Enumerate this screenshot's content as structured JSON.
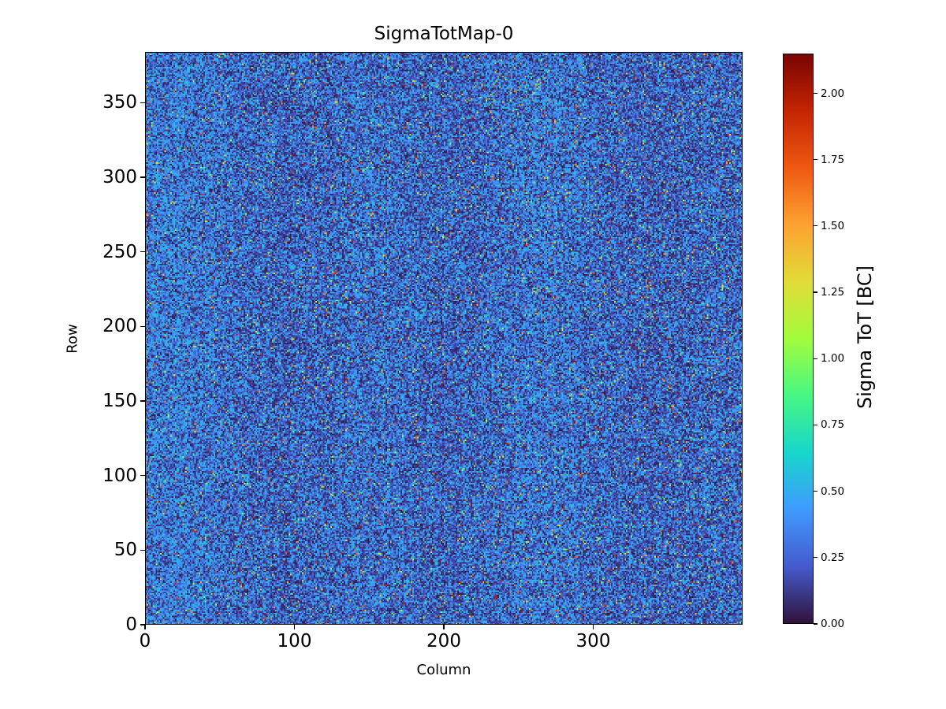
{
  "title": "SigmaTotMap-0",
  "xlabel": "Column",
  "ylabel": "Row",
  "colorbar_label": "Sigma ToT [BC]",
  "chart_data": {
    "type": "heatmap",
    "title": "SigmaTotMap-0",
    "xlabel": "Column",
    "ylabel": "Row",
    "colorbar_label": "Sigma ToT [BC]",
    "cols": 400,
    "rows": 384,
    "xlim": [
      0,
      400
    ],
    "ylim": [
      0,
      384
    ],
    "xticks": [
      0,
      100,
      200,
      300
    ],
    "yticks": [
      0,
      50,
      100,
      150,
      200,
      250,
      300,
      350
    ],
    "vmin": 0.0,
    "vmax": 2.15,
    "colorbar_ticks": [
      {
        "value": 0.0,
        "label": "0.00"
      },
      {
        "value": 0.25,
        "label": "0.25"
      },
      {
        "value": 0.5,
        "label": "0.50"
      },
      {
        "value": 0.75,
        "label": "0.75"
      },
      {
        "value": 1.0,
        "label": "1.00"
      },
      {
        "value": 1.25,
        "label": "1.25"
      },
      {
        "value": 1.5,
        "label": "1.50"
      },
      {
        "value": 1.75,
        "label": "1.75"
      },
      {
        "value": 2.0,
        "label": "2.00"
      }
    ],
    "colormap": "turbo",
    "colormap_stops": [
      [
        0.0,
        "#30123b"
      ],
      [
        0.1,
        "#455bcd"
      ],
      [
        0.2,
        "#3e9bfe"
      ],
      [
        0.3,
        "#18d6cb"
      ],
      [
        0.4,
        "#46f783"
      ],
      [
        0.5,
        "#a2fc3c"
      ],
      [
        0.6,
        "#e1dc37"
      ],
      [
        0.7,
        "#fda231"
      ],
      [
        0.8,
        "#ef5911"
      ],
      [
        0.9,
        "#c42503"
      ],
      [
        1.0,
        "#7a0403"
      ]
    ],
    "data_description": "Per-pixel sigma of Time-over-Threshold [BC] for a 400x384 pixel matrix; noise-like map: ~50% dark cells near 0.0-0.25 BC, ~45% blue cells around 0.25-0.6 BC, ~3% bright outlier specks 0.9-2.15 BC, with faint vertical column banding and a slightly brighter left side.",
    "generation": {
      "seed": 987654321,
      "p_bright_base": 0.022,
      "p_bright_right_boost": 0.014,
      "bright_min": 0.9,
      "bright_span": 1.25,
      "blue_min": 0.27,
      "blue_span": 0.31,
      "dark_min": 0.02,
      "dark_span": 0.22,
      "p_blue_base": 0.52,
      "p_blue_slope": -0.12,
      "band_sin1_amp": 0.06,
      "band_sin1_period": 19,
      "band_sin2_amp": 0.05,
      "band_sin2_period": 47,
      "col_jitter": 0.1
    }
  }
}
